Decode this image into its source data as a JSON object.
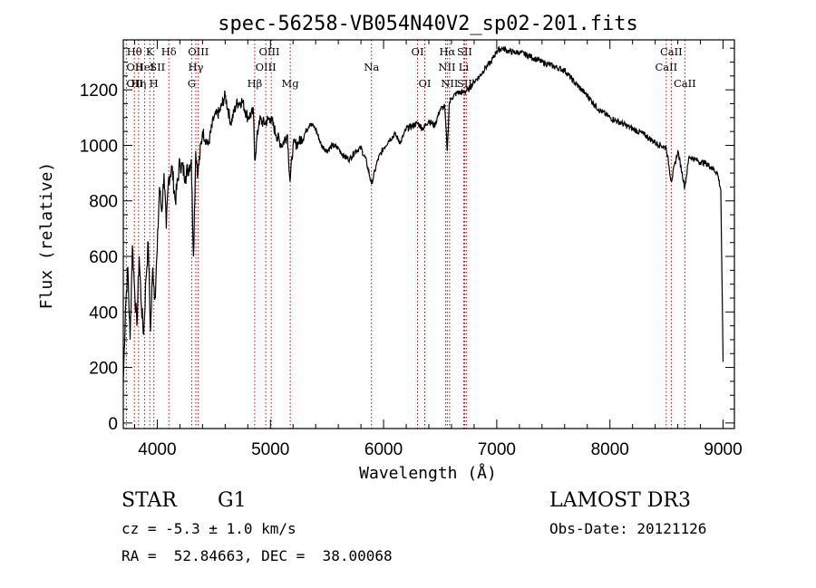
{
  "chart_data": {
    "type": "line",
    "title": "spec-56258-VB054N40V2_sp02-201.fits",
    "xlabel": "Wavelength (Å)",
    "ylabel": "Flux (relative)",
    "xlim": [
      3700,
      9100
    ],
    "ylim": [
      -20,
      1380
    ],
    "xticks": [
      4000,
      5000,
      6000,
      7000,
      8000,
      9000
    ],
    "yticks": [
      0,
      200,
      400,
      600,
      800,
      1000,
      1200
    ],
    "series": [
      {
        "name": "flux",
        "x": [
          3700,
          3720,
          3740,
          3760,
          3780,
          3800,
          3820,
          3840,
          3860,
          3880,
          3900,
          3920,
          3940,
          3960,
          3980,
          4000,
          4020,
          4040,
          4060,
          4080,
          4100,
          4130,
          4160,
          4200,
          4250,
          4300,
          4320,
          4340,
          4360,
          4400,
          4450,
          4500,
          4550,
          4600,
          4650,
          4700,
          4750,
          4800,
          4850,
          4861,
          4900,
          4950,
          5000,
          5050,
          5100,
          5150,
          5173,
          5200,
          5250,
          5300,
          5350,
          5400,
          5450,
          5500,
          5550,
          5600,
          5650,
          5700,
          5750,
          5800,
          5850,
          5893,
          5950,
          6000,
          6050,
          6100,
          6150,
          6200,
          6250,
          6300,
          6350,
          6400,
          6450,
          6500,
          6540,
          6563,
          6580,
          6600,
          6650,
          6700,
          6750,
          6800,
          6850,
          6900,
          6950,
          7000,
          7050,
          7100,
          7150,
          7200,
          7300,
          7400,
          7500,
          7600,
          7700,
          7800,
          7900,
          8000,
          8100,
          8200,
          8300,
          8400,
          8450,
          8498,
          8542,
          8600,
          8662,
          8700,
          8750,
          8800,
          8850,
          8900,
          8950,
          8980,
          9000
        ],
        "y": [
          150,
          420,
          560,
          300,
          640,
          480,
          350,
          600,
          420,
          320,
          520,
          650,
          330,
          560,
          450,
          620,
          850,
          760,
          900,
          700,
          880,
          920,
          800,
          940,
          890,
          950,
          600,
          980,
          900,
          1050,
          1000,
          1100,
          1120,
          1180,
          1080,
          1150,
          1160,
          1100,
          1120,
          950,
          1090,
          1080,
          1100,
          1040,
          1000,
          1040,
          870,
          1000,
          1010,
          1040,
          1080,
          1060,
          1000,
          980,
          1000,
          990,
          960,
          950,
          980,
          990,
          940,
          860,
          950,
          990,
          1020,
          1040,
          1010,
          1060,
          1070,
          1080,
          1060,
          1090,
          1070,
          1130,
          1140,
          980,
          1150,
          1170,
          1190,
          1190,
          1200,
          1230,
          1250,
          1280,
          1300,
          1340,
          1350,
          1340,
          1335,
          1335,
          1320,
          1300,
          1285,
          1270,
          1220,
          1180,
          1130,
          1100,
          1080,
          1060,
          1040,
          1010,
          1000,
          990,
          870,
          980,
          850,
          960,
          950,
          940,
          935,
          920,
          900,
          840,
          220
        ]
      }
    ],
    "line_markers": [
      {
        "label": "Hθ",
        "x": 3798,
        "row": 1,
        "anchor": "middle"
      },
      {
        "label": "OII",
        "x": 3727,
        "row": 2,
        "anchor": "start"
      },
      {
        "label": "OII",
        "x": 3727,
        "row": 3,
        "anchor": "start"
      },
      {
        "label": "Hη",
        "x": 3835,
        "row": 3,
        "anchor": "middle"
      },
      {
        "label": "HeI",
        "x": 3889,
        "row": 2,
        "anchor": "middle"
      },
      {
        "label": "K",
        "x": 3934,
        "row": 1,
        "anchor": "middle"
      },
      {
        "label": "SII",
        "x": 4070,
        "row": 2,
        "anchor": "end"
      },
      {
        "label": "H",
        "x": 3970,
        "row": 3,
        "anchor": "middle"
      },
      {
        "label": "Hδ",
        "x": 4102,
        "row": 1,
        "anchor": "middle"
      },
      {
        "label": "OIII",
        "x": 4363,
        "row": 1,
        "anchor": "middle"
      },
      {
        "label": "Hγ",
        "x": 4341,
        "row": 2,
        "anchor": "middle"
      },
      {
        "label": "G",
        "x": 4305,
        "row": 3,
        "anchor": "middle"
      },
      {
        "label": "Hβ",
        "x": 4861,
        "row": 3,
        "anchor": "middle"
      },
      {
        "label": "OIII",
        "x": 4990,
        "row": 1,
        "anchor": "middle"
      },
      {
        "label": "OIII",
        "x": 4959,
        "row": 2,
        "anchor": "middle"
      },
      {
        "label": "Mg",
        "x": 5175,
        "row": 3,
        "anchor": "middle"
      },
      {
        "label": "Na",
        "x": 5893,
        "row": 2,
        "anchor": "middle"
      },
      {
        "label": "OI",
        "x": 6300,
        "row": 1,
        "anchor": "middle"
      },
      {
        "label": "OI",
        "x": 6364,
        "row": 3,
        "anchor": "middle"
      },
      {
        "label": "Hα",
        "x": 6563,
        "row": 1,
        "anchor": "middle"
      },
      {
        "label": "SII",
        "x": 6716,
        "row": 1,
        "anchor": "middle"
      },
      {
        "label": "NII",
        "x": 6560,
        "row": 2,
        "anchor": "middle"
      },
      {
        "label": "Li",
        "x": 6708,
        "row": 2,
        "anchor": "middle"
      },
      {
        "label": "NII",
        "x": 6583,
        "row": 3,
        "anchor": "middle"
      },
      {
        "label": "SII",
        "x": 6716,
        "row": 3,
        "anchor": "middle"
      },
      {
        "label": "CaII",
        "x": 8542,
        "row": 1,
        "anchor": "middle"
      },
      {
        "label": "CaII",
        "x": 8498,
        "row": 2,
        "anchor": "middle"
      },
      {
        "label": "CaII",
        "x": 8662,
        "row": 3,
        "anchor": "middle"
      }
    ],
    "dotted_lines_x": [
      3727,
      3798,
      3835,
      3889,
      3934,
      3970,
      4102,
      4305,
      4341,
      4363,
      4861,
      4959,
      5007,
      5175,
      5893,
      6300,
      6364,
      6548,
      6563,
      6583,
      6708,
      6716,
      6731,
      8498,
      8542,
      8662
    ],
    "marker_color": "#cc0000"
  },
  "info": {
    "object_class": "STAR",
    "subclass": "G1",
    "survey": "LAMOST DR3",
    "redshift": "cz = -5.3 ± 1.0 km/s",
    "obs_date": "Obs-Date: 20121126",
    "coords": "RA =  52.84663, DEC =  38.00068"
  }
}
